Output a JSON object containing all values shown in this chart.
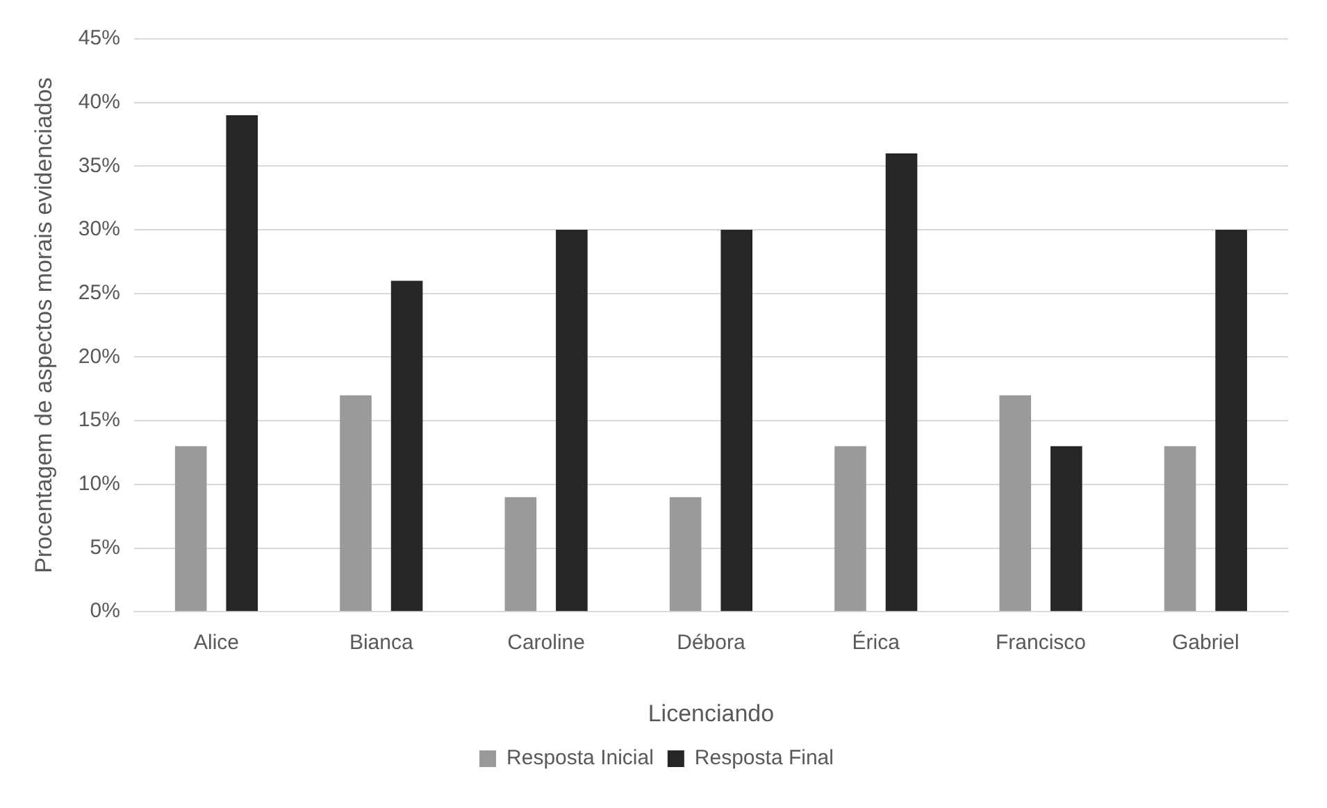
{
  "chart_data": {
    "type": "bar",
    "xlabel": "Licenciando",
    "ylabel": "Procentagem de aspectos morais evidenciados",
    "categories": [
      "Alice",
      "Bianca",
      "Caroline",
      "Débora",
      "Érica",
      "Francisco",
      "Gabriel"
    ],
    "series": [
      {
        "name": "Resposta Inicial",
        "color": "#9a9a9a",
        "values": [
          13,
          17,
          9,
          9,
          13,
          17,
          13
        ]
      },
      {
        "name": "Resposta Final",
        "color": "#262626",
        "values": [
          39,
          26,
          30,
          30,
          36,
          13,
          30
        ]
      }
    ],
    "ylim": [
      0,
      45
    ],
    "yticks": [
      {
        "value": 0,
        "label": "0%"
      },
      {
        "value": 5,
        "label": "5%"
      },
      {
        "value": 10,
        "label": "10%"
      },
      {
        "value": 15,
        "label": "15%"
      },
      {
        "value": 20,
        "label": "20%"
      },
      {
        "value": 25,
        "label": "25%"
      },
      {
        "value": 30,
        "label": "30%"
      },
      {
        "value": 35,
        "label": "35%"
      },
      {
        "value": 40,
        "label": "40%"
      },
      {
        "value": 45,
        "label": "45%"
      }
    ],
    "grid": "y",
    "legend": "bottom"
  }
}
